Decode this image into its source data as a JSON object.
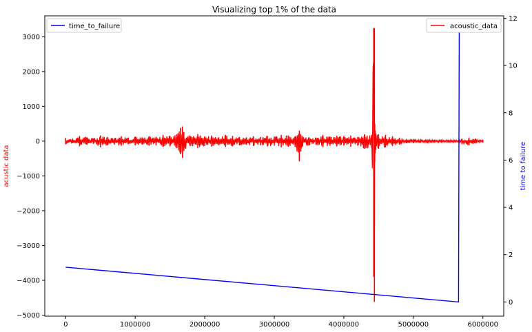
{
  "chart_data": {
    "type": "line",
    "title": "Visualizing top 1% of the data",
    "xlim": [
      -300000,
      6300000
    ],
    "x_ticks": [
      0,
      1000000,
      2000000,
      3000000,
      4000000,
      5000000,
      6000000
    ],
    "x_tick_labels": [
      "0",
      "1000000",
      "2000000",
      "3000000",
      "4000000",
      "5000000",
      "6000000"
    ],
    "left_axis": {
      "label": "acustic data",
      "color": "#ff0000",
      "ylim": [
        -5030,
        3600
      ],
      "ticks": [
        -5000,
        -4000,
        -3000,
        -2000,
        -1000,
        0,
        1000,
        2000,
        3000
      ],
      "tick_labels": [
        "−5000",
        "−4000",
        "−3000",
        "−2000",
        "−1000",
        "0",
        "1000",
        "2000",
        "3000"
      ]
    },
    "right_axis": {
      "label": "time to failure",
      "color": "#0000ff",
      "ylim": [
        -0.6,
        12.1
      ],
      "ticks": [
        0,
        2,
        4,
        6,
        8,
        10,
        12
      ],
      "tick_labels": [
        "0",
        "2",
        "4",
        "6",
        "8",
        "10",
        "12"
      ]
    },
    "series": [
      {
        "name": "acustic_data",
        "axis": "left",
        "color": "#ff0000",
        "x": [
          0,
          100000,
          200000,
          300000,
          400000,
          500000,
          600000,
          700000,
          800000,
          900000,
          1000000,
          1100000,
          1200000,
          1300000,
          1400000,
          1500000,
          1600000,
          1650000,
          1680000,
          1700000,
          1800000,
          1900000,
          2000000,
          2100000,
          2200000,
          2300000,
          2400000,
          2500000,
          2600000,
          2700000,
          2800000,
          2900000,
          3000000,
          3100000,
          3200000,
          3300000,
          3360000,
          3380000,
          3400000,
          3500000,
          3600000,
          3700000,
          3800000,
          3900000,
          4000000,
          4100000,
          4200000,
          4300000,
          4400000,
          4430000,
          4440000,
          4445000,
          4450000,
          4460000,
          4500000,
          4600000,
          4700000,
          4800000,
          4900000,
          5000000,
          5100000,
          5200000,
          5300000,
          5400000,
          5500000,
          5600000,
          5700000,
          5800000,
          5900000,
          6000000
        ],
        "y_high": [
          90,
          60,
          140,
          110,
          80,
          160,
          120,
          90,
          140,
          100,
          130,
          110,
          140,
          120,
          180,
          150,
          200,
          380,
          420,
          260,
          140,
          200,
          130,
          160,
          110,
          180,
          150,
          120,
          110,
          140,
          120,
          150,
          130,
          180,
          160,
          140,
          300,
          200,
          150,
          110,
          100,
          170,
          130,
          150,
          130,
          160,
          120,
          200,
          180,
          3250,
          3250,
          500,
          300,
          220,
          200,
          180,
          140,
          100,
          60,
          60,
          50,
          50,
          40,
          40,
          40,
          40,
          70,
          100,
          60,
          40
        ],
        "y_low": [
          -90,
          -60,
          -150,
          -100,
          -80,
          -180,
          -120,
          -100,
          -130,
          -90,
          -120,
          -100,
          -130,
          -120,
          -160,
          -150,
          -200,
          -380,
          -480,
          -280,
          -140,
          -200,
          -140,
          -160,
          -120,
          -170,
          -150,
          -120,
          -110,
          -140,
          -120,
          -150,
          -130,
          -180,
          -160,
          -170,
          -580,
          -300,
          -160,
          -120,
          -110,
          -170,
          -130,
          -150,
          -130,
          -160,
          -130,
          -220,
          -200,
          -3900,
          -4620,
          -600,
          -350,
          -250,
          -220,
          -180,
          -140,
          -100,
          -60,
          -60,
          -50,
          -50,
          -40,
          -40,
          -40,
          -40,
          -90,
          -120,
          -70,
          -40
        ]
      },
      {
        "name": "time_to_failure",
        "axis": "right",
        "color": "#0000ff",
        "x": [
          0,
          5650000,
          5660000,
          6000000
        ],
        "y": [
          1.47,
          0.0,
          11.54,
          11.4
        ]
      }
    ],
    "legends": [
      {
        "label": "time_to_failure",
        "placement": "upper-left",
        "color": "#0000ff"
      },
      {
        "label": "acoustic_data",
        "placement": "upper-right",
        "color": "#ff0000"
      }
    ],
    "grid": false
  }
}
